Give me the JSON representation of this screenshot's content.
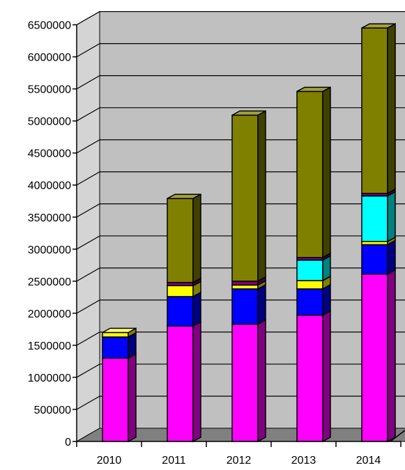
{
  "chart_data": {
    "type": "bar",
    "stacked": true,
    "three_d": true,
    "categories": [
      "2010",
      "2011",
      "2012",
      "2013",
      "2014"
    ],
    "y_ticks": [
      "0",
      "500000",
      "1000000",
      "1500000",
      "2000000",
      "2500000",
      "3000000",
      "3500000",
      "4000000",
      "4500000",
      "5000000",
      "5500000",
      "6000000",
      "6500000"
    ],
    "ylim": [
      0,
      6500000
    ],
    "grid": true,
    "legend": "none",
    "series": [
      {
        "color": "#FF00FF",
        "side_color": "#800080",
        "top_color": "#FF80FF",
        "values": [
          1300000,
          1800000,
          1830000,
          1970000,
          2610000
        ]
      },
      {
        "color": "#0000FF",
        "side_color": "#000080",
        "top_color": "#6060FF",
        "values": [
          330000,
          460000,
          550000,
          410000,
          460000
        ]
      },
      {
        "color": "#FFFF00",
        "side_color": "#808000",
        "top_color": "#FFFF80",
        "values": [
          70000,
          170000,
          60000,
          130000,
          50000
        ]
      },
      {
        "color": "#00FFFF",
        "side_color": "#008080",
        "top_color": "#80FFFF",
        "values": [
          0,
          0,
          0,
          320000,
          710000
        ]
      },
      {
        "color": "#800080",
        "side_color": "#400040",
        "top_color": "#A040A0",
        "values": [
          0,
          50000,
          60000,
          40000,
          40000
        ]
      },
      {
        "color": "#808000",
        "side_color": "#404000",
        "top_color": "#A0A040",
        "values": [
          0,
          1310000,
          2590000,
          2590000,
          2580000
        ]
      }
    ],
    "colors": {
      "back_wall": "#C0C0C0",
      "side_wall": "#D4D4D4",
      "floor": "#808080",
      "grid": "#000000"
    }
  }
}
